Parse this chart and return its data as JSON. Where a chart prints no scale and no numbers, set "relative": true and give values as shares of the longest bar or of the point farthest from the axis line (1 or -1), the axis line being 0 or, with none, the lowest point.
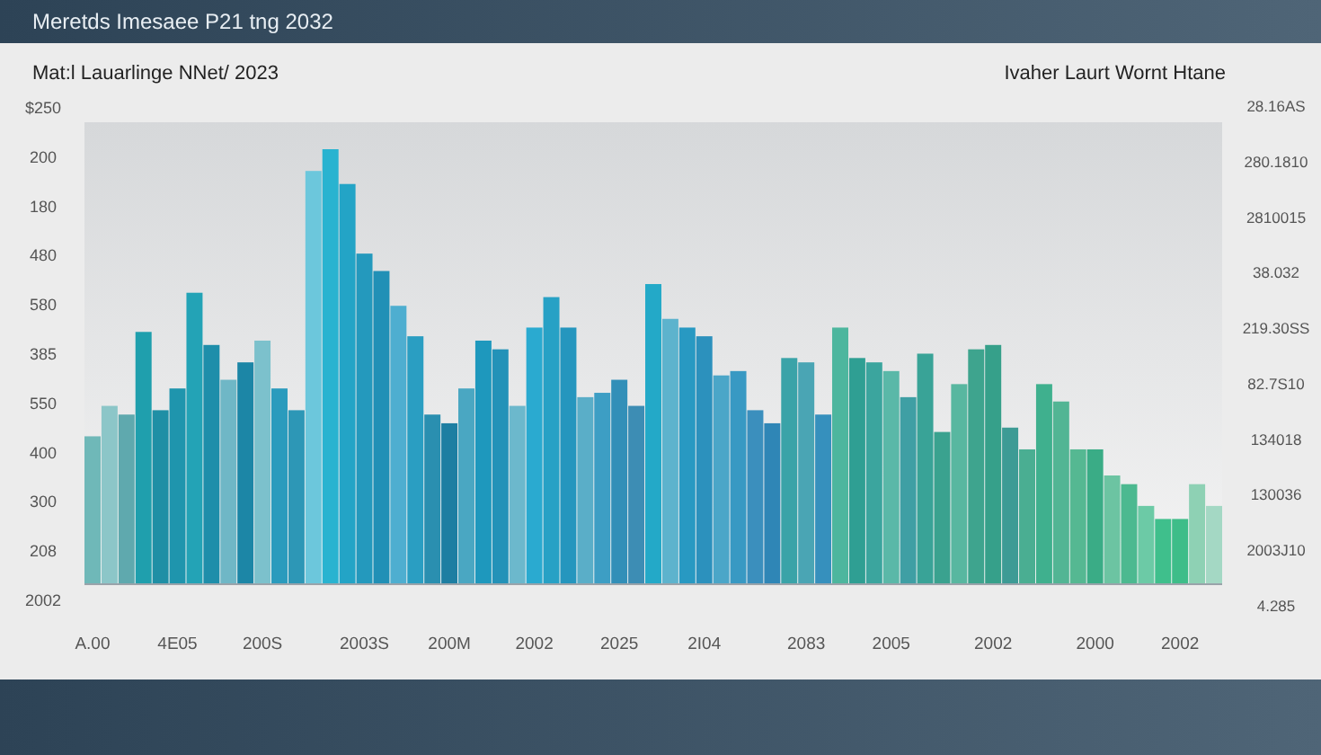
{
  "chart_data": {
    "type": "bar",
    "relative": true,
    "title": "Meretds Imesaee P21 tng 2032",
    "subtitle": "Mat:l Lauarlinge NNet/ 2023",
    "annotations": [
      "Ivaher Laurt Wornt Htane",
      "$250",
      "200",
      "180",
      "480",
      "580",
      "385",
      "550",
      "400",
      "300",
      "208",
      "2002",
      "28.16AS",
      "280.1810",
      "2810015",
      "38.032",
      "219.30SS",
      "82.7S10",
      "134018",
      "130036",
      "2003J10",
      "4.285"
    ],
    "categories": [
      "A.00",
      null,
      null,
      null,
      null,
      "4E05",
      null,
      null,
      null,
      null,
      "200S",
      null,
      null,
      null,
      null,
      null,
      "2003S",
      null,
      null,
      null,
      null,
      "200M",
      null,
      null,
      null,
      null,
      "2002",
      null,
      null,
      null,
      null,
      "2025",
      null,
      null,
      null,
      null,
      "2I04",
      null,
      null,
      null,
      null,
      null,
      "2083",
      null,
      null,
      null,
      null,
      "2005",
      null,
      null,
      null,
      null,
      null,
      "2002",
      null,
      null,
      null,
      null,
      null,
      "2000",
      null,
      null,
      null,
      null,
      "2002",
      null,
      null
    ],
    "values": [
      0.34,
      0.41,
      0.39,
      0.58,
      0.4,
      0.45,
      0.67,
      0.55,
      0.47,
      0.51,
      0.56,
      0.45,
      0.4,
      0.95,
      1,
      0.92,
      0.76,
      0.72,
      0.64,
      0.57,
      0.39,
      0.37,
      0.45,
      0.56,
      0.54,
      0.41,
      0.59,
      0.66,
      0.59,
      0.43,
      0.44,
      0.47,
      0.41,
      0.69,
      0.61,
      0.59,
      0.57,
      0.48,
      0.49,
      0.4,
      0.37,
      0.52,
      0.51,
      0.39,
      0.59,
      0.52,
      0.51,
      0.49,
      0.43,
      0.53,
      0.35,
      0.46,
      0.54,
      0.55,
      0.36,
      0.31,
      0.46,
      0.42,
      0.31,
      0.31,
      0.25,
      0.23,
      0.18,
      0.15,
      0.15,
      0.23,
      0.18
    ],
    "colors": [
      "#6fb8b8",
      "#8cc6c8",
      "#5fa9ae",
      "#1f9fad",
      "#1f8fa5",
      "#1f95ad",
      "#23a3b6",
      "#1e8eaa",
      "#6fb7c6",
      "#1c86a6",
      "#7cc1cc",
      "#2a9bbd",
      "#2d97b6",
      "#6cc7dc",
      "#29b3d0",
      "#23a4c6",
      "#2499bd",
      "#2190b6",
      "#4eaed0",
      "#2a9ec2",
      "#2a8fb0",
      "#1d7ea2",
      "#4aa7c2",
      "#1e98bd",
      "#2392b8",
      "#6cb8cc",
      "#2aaad0",
      "#27a1c5",
      "#2596be",
      "#5aaec8",
      "#3d9ec4",
      "#328fb8",
      "#3d8db4",
      "#23a9c8",
      "#5db3cd",
      "#2899c2",
      "#2c91bd",
      "#4ba6c8",
      "#3899c3",
      "#3b8fbd",
      "#2f86b6",
      "#3aa3a8",
      "#4aa5b4",
      "#3690bd",
      "#4db69e",
      "#2f9f93",
      "#3ba59e",
      "#5ab8a8",
      "#3f9fa4",
      "#39a397",
      "#3aa28f",
      "#58b7a0",
      "#3ea48e",
      "#36a08a",
      "#3d9b95",
      "#4aae92",
      "#3fb08e",
      "#52b594",
      "#55b892",
      "#3aac86",
      "#6cc4a2",
      "#4cb990",
      "#6ccaa6",
      "#3fbf8c",
      "#3ebd89",
      "#8ed1b4",
      "#a4d8c4"
    ]
  }
}
